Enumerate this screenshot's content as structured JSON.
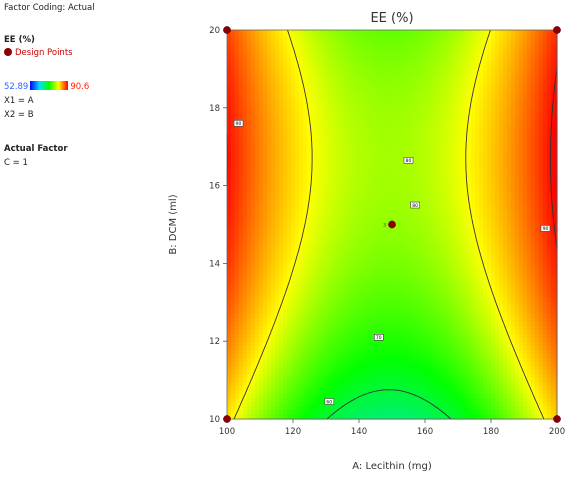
{
  "legend": {
    "factor_coding": "Factor Coding: Actual",
    "response": "EE (%)",
    "design_points": "Design Points",
    "scale_min": "52.89",
    "scale_max": "90.6",
    "x1": "X1 = A",
    "x2": "X2 = B",
    "actual_factor_heading": "Actual Factor",
    "actual_factor_value": "C = 1"
  },
  "colors": {
    "design_point": "#8b0000",
    "contour_line": "#333333",
    "scale_low": "#0000ff",
    "scale_high": "#ff0000"
  },
  "chart_data": {
    "type": "heatmap",
    "title": "EE (%)",
    "xlabel": "A: Lecithin (mg)",
    "ylabel": "B: DCM (ml)",
    "xlim": [
      100,
      200
    ],
    "ylim": [
      10,
      20
    ],
    "x_ticks": [
      100,
      120,
      140,
      160,
      180,
      200
    ],
    "y_ticks": [
      10,
      12,
      14,
      16,
      18,
      20
    ],
    "z_range": [
      52.89,
      90.6
    ],
    "grid": false,
    "contour_levels": [
      60,
      70,
      80,
      90
    ],
    "contour_labels": [
      {
        "text": "90",
        "x": 103.5,
        "y": 17.6
      },
      {
        "text": "80",
        "x": 155,
        "y": 16.65
      },
      {
        "text": "80",
        "x": 157,
        "y": 15.5
      },
      {
        "text": "90",
        "x": 196.5,
        "y": 14.9
      },
      {
        "text": "70",
        "x": 146,
        "y": 12.1
      },
      {
        "text": "60",
        "x": 131,
        "y": 10.45
      }
    ],
    "design_points": [
      {
        "x": 100,
        "y": 10
      },
      {
        "x": 200,
        "y": 10
      },
      {
        "x": 100,
        "y": 20
      },
      {
        "x": 200,
        "y": 20
      },
      {
        "x": 150,
        "y": 15,
        "label": "3"
      }
    ]
  }
}
